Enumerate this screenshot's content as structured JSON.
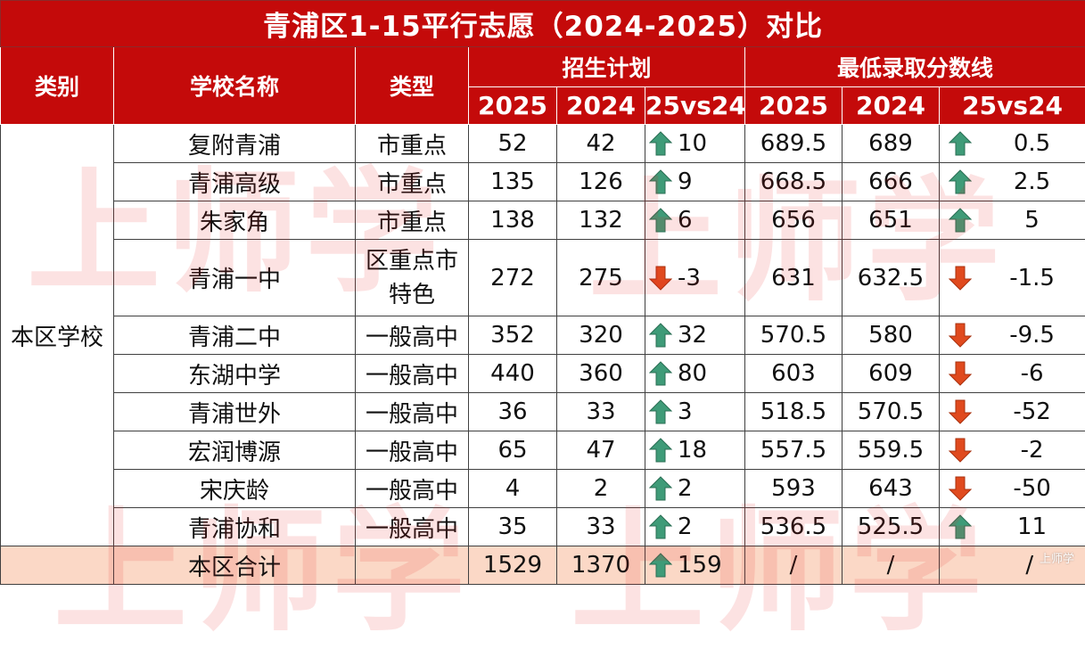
{
  "title": "青浦区1-15平行志愿（2024-2025）对比",
  "headers": {
    "category": "类别",
    "school": "学校名称",
    "type": "类型",
    "plan": "招生计划",
    "score": "最低录取分数线",
    "y2025": "2025",
    "y2024": "2024",
    "diff": "25vs24"
  },
  "category_label": "本区学校",
  "rows": [
    {
      "school": "复附青浦",
      "type": "市重点",
      "p25": "52",
      "p24": "42",
      "pd_dir": "up",
      "pd": "10",
      "s25": "689.5",
      "s24": "689",
      "sd_dir": "up",
      "sd": "0.5"
    },
    {
      "school": "青浦高级",
      "type": "市重点",
      "p25": "135",
      "p24": "126",
      "pd_dir": "up",
      "pd": "9",
      "s25": "668.5",
      "s24": "666",
      "sd_dir": "up",
      "sd": "2.5"
    },
    {
      "school": "朱家角",
      "type": "市重点",
      "p25": "138",
      "p24": "132",
      "pd_dir": "up",
      "pd": "6",
      "s25": "656",
      "s24": "651",
      "sd_dir": "up",
      "sd": "5"
    },
    {
      "school": "青浦一中",
      "type": "区重点市特色",
      "type_line1": "区重点市",
      "type_line2": "特色",
      "p25": "272",
      "p24": "275",
      "pd_dir": "down",
      "pd": "-3",
      "s25": "631",
      "s24": "632.5",
      "sd_dir": "down",
      "sd": "-1.5"
    },
    {
      "school": "青浦二中",
      "type": "一般高中",
      "p25": "352",
      "p24": "320",
      "pd_dir": "up",
      "pd": "32",
      "s25": "570.5",
      "s24": "580",
      "sd_dir": "down",
      "sd": "-9.5"
    },
    {
      "school": "东湖中学",
      "type": "一般高中",
      "p25": "440",
      "p24": "360",
      "pd_dir": "up",
      "pd": "80",
      "s25": "603",
      "s24": "609",
      "sd_dir": "down",
      "sd": "-6"
    },
    {
      "school": "青浦世外",
      "type": "一般高中",
      "p25": "36",
      "p24": "33",
      "pd_dir": "up",
      "pd": "3",
      "s25": "518.5",
      "s24": "570.5",
      "sd_dir": "down",
      "sd": "-52"
    },
    {
      "school": "宏润博源",
      "type": "一般高中",
      "p25": "65",
      "p24": "47",
      "pd_dir": "up",
      "pd": "18",
      "s25": "557.5",
      "s24": "559.5",
      "sd_dir": "down",
      "sd": "-2"
    },
    {
      "school": "宋庆龄",
      "type": "一般高中",
      "p25": "4",
      "p24": "2",
      "pd_dir": "up",
      "pd": "2",
      "s25": "593",
      "s24": "643",
      "sd_dir": "down",
      "sd": "-50"
    },
    {
      "school": "青浦协和",
      "type": "一般高中",
      "p25": "35",
      "p24": "33",
      "pd_dir": "up",
      "pd": "2",
      "s25": "536.5",
      "s24": "525.5",
      "sd_dir": "up",
      "sd": "11"
    }
  ],
  "total": {
    "label": "本区合计",
    "p25": "1529",
    "p24": "1370",
    "pd_dir": "up",
    "pd": "159",
    "s25": "/",
    "s24": "/",
    "sd": "/"
  },
  "watermark": "上师学",
  "colors": {
    "header_red": "#c40a0a",
    "up_arrow": "#3f9b78",
    "down_arrow": "#e04a1e",
    "total_bg": "#fbd8c6"
  },
  "icons": {
    "up": "arrow-up-icon",
    "down": "arrow-down-icon"
  }
}
